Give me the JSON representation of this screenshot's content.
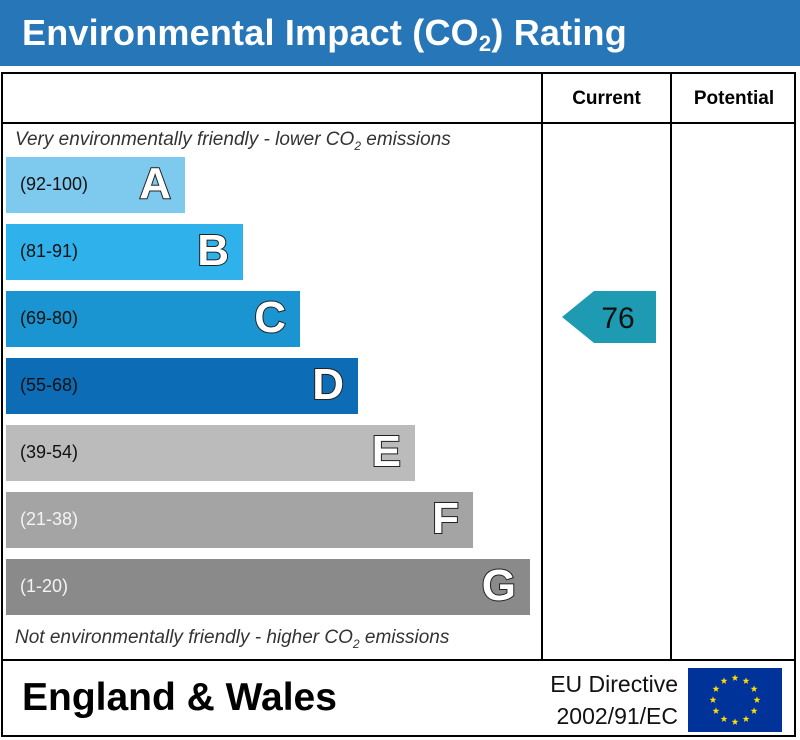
{
  "title_main": "Environmental Impact (CO",
  "title_sub": "2",
  "title_end": ") Rating",
  "columns": {
    "current": "Current",
    "potential": "Potential"
  },
  "notes": {
    "top_prefix": "Very environmentally friendly - lower CO",
    "top_sub": "2",
    "top_suffix": " emissions",
    "bottom_prefix": "Not environmentally friendly - higher CO",
    "bottom_sub": "2",
    "bottom_suffix": " emissions"
  },
  "chart_data": {
    "type": "bar",
    "categories": [
      "A",
      "B",
      "C",
      "D",
      "E",
      "F",
      "G"
    ],
    "ranges": [
      "(92-100)",
      "(81-91)",
      "(69-80)",
      "(55-68)",
      "(39-54)",
      "(21-38)",
      "(1-20)"
    ],
    "colors": [
      "#7ec9ee",
      "#2fb2ec",
      "#1a95d2",
      "#0c6cb6",
      "#bbbbbb",
      "#a4a4a4",
      "#8a8a8a"
    ],
    "current": {
      "value": "76",
      "band": "C",
      "color": "#1e9bb2"
    },
    "potential": null
  },
  "footer": {
    "region": "England & Wales",
    "directive_line1": "EU Directive",
    "directive_line2": "2002/91/EC",
    "flag_color": "#003399",
    "star_color": "#ffdd00"
  }
}
